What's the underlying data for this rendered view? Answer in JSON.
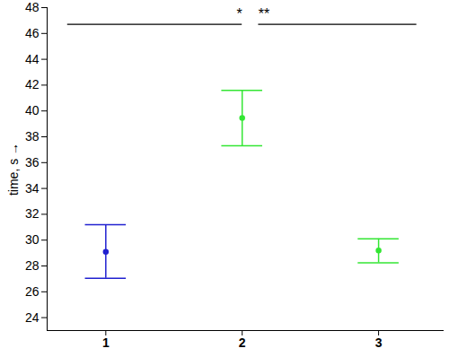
{
  "chart_data": {
    "type": "errorbar",
    "x": [
      1,
      2,
      3
    ],
    "values": [
      29.1,
      39.45,
      29.2
    ],
    "error_low": [
      27.05,
      37.3,
      28.25
    ],
    "error_high": [
      31.2,
      41.6,
      30.1
    ],
    "colors": [
      "#2020d0",
      "#33e633",
      "#33e633"
    ],
    "y_label": "time, s",
    "xlim": [
      0.57,
      3.48
    ],
    "xticks": [
      1,
      2,
      3
    ],
    "ylim": [
      23,
      48
    ],
    "yticks": [
      24,
      26,
      28,
      30,
      32,
      34,
      36,
      38,
      40,
      42,
      44,
      46,
      48
    ],
    "marker": "circle",
    "annotations": [
      {
        "text": "*",
        "x": 1.98,
        "y": 47.1,
        "line_from": 0.72,
        "line_to": 2.0,
        "line_y": 46.7
      },
      {
        "text": "**",
        "x": 2.16,
        "y": 47.1,
        "line_from": 2.12,
        "line_to": 3.28,
        "line_y": 46.7
      }
    ]
  }
}
